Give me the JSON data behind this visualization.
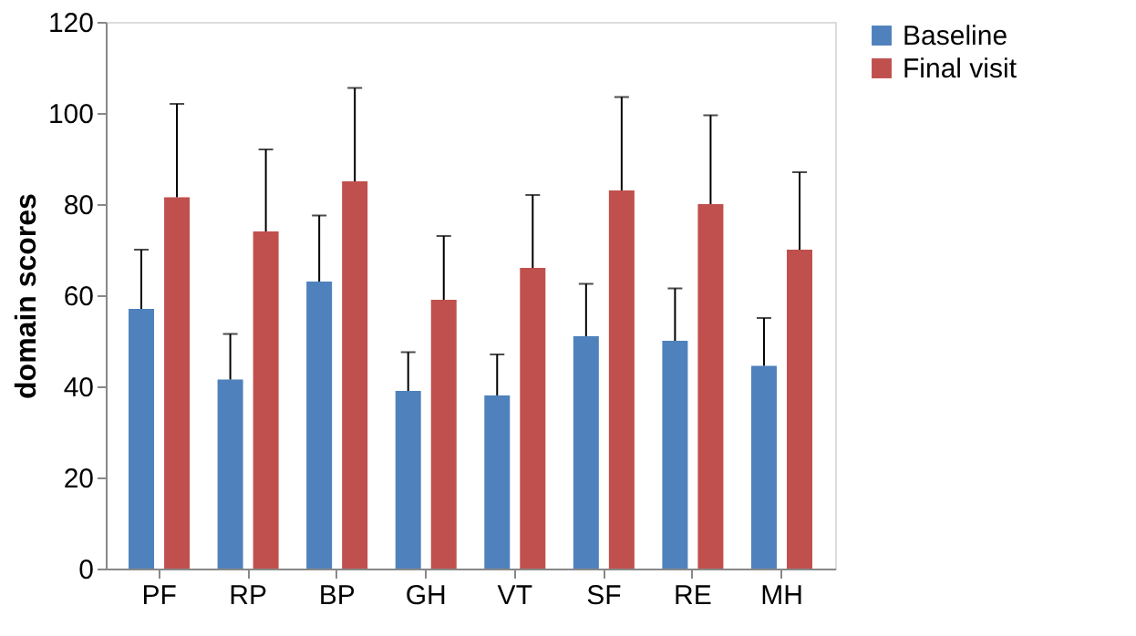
{
  "chart_data": {
    "type": "bar",
    "ylabel": "domain scores",
    "categories": [
      "PF",
      "RP",
      "BP",
      "GH",
      "VT",
      "SF",
      "RE",
      "MH"
    ],
    "series": [
      {
        "name": "Baseline",
        "color": "#4f81bd",
        "values": [
          57,
          41.5,
          63,
          39,
          38,
          51,
          50,
          44.5
        ],
        "errors": [
          [
            57,
            70
          ],
          [
            41.5,
            51.5
          ],
          [
            63,
            77.5
          ],
          [
            39,
            47.5
          ],
          [
            38,
            47
          ],
          [
            51,
            62.5
          ],
          [
            50,
            61.5
          ],
          [
            44.5,
            55
          ]
        ]
      },
      {
        "name": "Final visit",
        "color": "#c0504d",
        "values": [
          81.5,
          74,
          85,
          59,
          66,
          83,
          80,
          70
        ],
        "errors": [
          [
            81.5,
            102
          ],
          [
            74,
            92
          ],
          [
            85,
            105.5
          ],
          [
            59,
            73
          ],
          [
            66,
            82
          ],
          [
            83,
            103.5
          ],
          [
            80,
            99.5
          ],
          [
            70,
            87
          ]
        ]
      }
    ],
    "ylim": [
      0,
      120
    ],
    "yticks": [
      0,
      20,
      40,
      60,
      80,
      100,
      120
    ],
    "grid": false,
    "legend": "right"
  }
}
